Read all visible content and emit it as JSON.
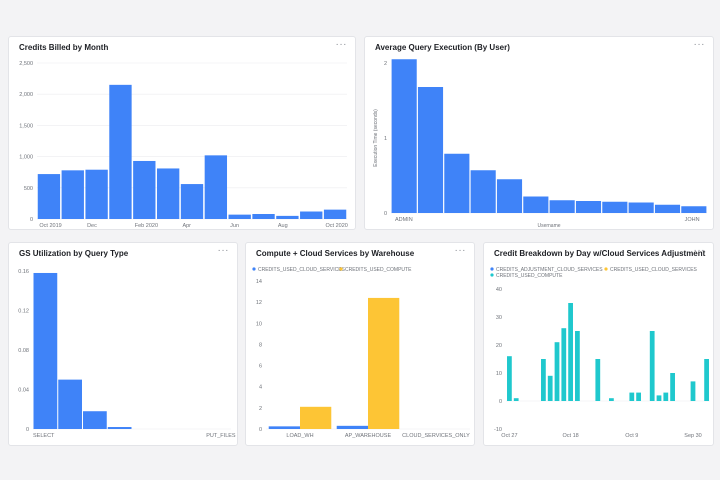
{
  "colors": {
    "blue": "#3f83f8",
    "yellow": "#fdc535",
    "teal": "#1fc8cd"
  },
  "menu_label": "···",
  "chart_data": [
    {
      "id": "credits-billed",
      "type": "bar",
      "title": "Credits Billed by Month",
      "yticks": [
        "0",
        "500",
        "1,000",
        "1,500",
        "2,000",
        "2,500"
      ],
      "ylim": [
        0,
        2500
      ],
      "xticks": [
        {
          "label": "Oct 2019",
          "index": 0
        },
        {
          "label": "Dec",
          "index": 2
        },
        {
          "label": "Feb 2020",
          "index": 4
        },
        {
          "label": "Apr",
          "index": 6
        },
        {
          "label": "Jun",
          "index": 8
        },
        {
          "label": "Aug",
          "index": 10
        },
        {
          "label": "Oct 2020",
          "index": 12
        }
      ],
      "values": [
        720,
        780,
        790,
        2150,
        930,
        810,
        560,
        1020,
        70,
        80,
        50,
        120,
        150
      ]
    },
    {
      "id": "avg-query",
      "type": "bar",
      "title": "Average Query Execution (By User)",
      "ylabel": "Execution Time (seconds)",
      "xlabel": "Username",
      "yticks": [
        "0",
        "1",
        "2"
      ],
      "ylim": [
        0,
        2
      ],
      "xticks": [
        {
          "label": "ADMIN",
          "index": 0
        },
        {
          "label": "JOHN",
          "index": 11
        }
      ],
      "values": [
        2.05,
        1.68,
        0.79,
        0.57,
        0.45,
        0.22,
        0.17,
        0.16,
        0.15,
        0.14,
        0.11,
        0.09
      ]
    },
    {
      "id": "gs-util",
      "type": "bar",
      "title": "GS Utilization by Query Type",
      "yticks": [
        "0",
        "0.04",
        "0.08",
        "0.12",
        "0.16"
      ],
      "ylim": [
        0,
        0.16
      ],
      "xticks": [
        {
          "label": "SELECT",
          "index": 0
        },
        {
          "label": "PUT_FILES",
          "index": 7
        }
      ],
      "values": [
        0.158,
        0.05,
        0.018,
        0.002,
        0,
        0,
        0,
        0
      ]
    },
    {
      "id": "compute-cloud",
      "type": "bar",
      "title": "Compute + Cloud Services by Warehouse",
      "yticks": [
        "0",
        "2",
        "4",
        "6",
        "8",
        "10",
        "12",
        "14"
      ],
      "ylim": [
        0,
        14
      ],
      "categories": [
        "LOAD_WH",
        "AP_WAREHOUSE",
        "CLOUD_SERVICES_ONLY"
      ],
      "series": [
        {
          "name": "CREDITS_USED_CLOUD_SERVICES",
          "color": "blue",
          "values": [
            0.25,
            0.3,
            0
          ]
        },
        {
          "name": "CREDITS_USED_COMPUTE",
          "color": "yellow",
          "values": [
            2.1,
            12.4,
            0
          ]
        }
      ]
    },
    {
      "id": "credit-breakdown",
      "type": "bar",
      "title": "Credit Breakdown by Day w/Cloud Services Adjustment",
      "yticks": [
        "-10",
        "0",
        "10",
        "20",
        "30",
        "40"
      ],
      "ylim": [
        -10,
        40
      ],
      "xticks": [
        {
          "label": "Oct 27",
          "index": 0
        },
        {
          "label": "Oct 18",
          "index": 9
        },
        {
          "label": "Oct 9",
          "index": 18
        },
        {
          "label": "Sep 30",
          "index": 27
        }
      ],
      "series": [
        {
          "name": "CREDITS_ADJUSTMENT_CLOUD_SERVICES",
          "color": "blue"
        },
        {
          "name": "CREDITS_USED_CLOUD_SERVICES",
          "color": "yellow"
        },
        {
          "name": "CREDITS_USED_COMPUTE",
          "color": "teal",
          "values": [
            16,
            1,
            0,
            0,
            0,
            15,
            9,
            21,
            26,
            35,
            25,
            0,
            0,
            15,
            0,
            1,
            0,
            0,
            3,
            3,
            0,
            25,
            2,
            3,
            10,
            0,
            0,
            7,
            0,
            15
          ]
        }
      ]
    }
  ]
}
